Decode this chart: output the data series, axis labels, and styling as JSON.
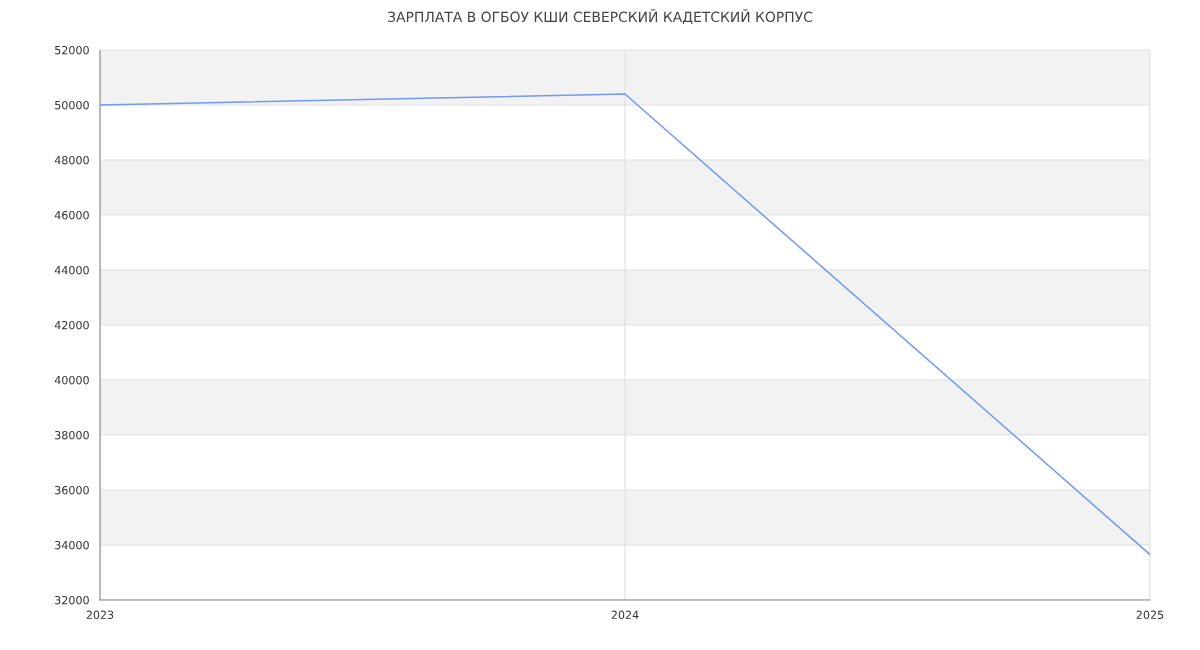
{
  "chart_data": {
    "type": "line",
    "title": "ЗАРПЛАТА В ОГБОУ КШИ СЕВЕРСКИЙ КАДЕТСКИЙ КОРПУС",
    "x": [
      2023,
      2024,
      2025
    ],
    "series": [
      {
        "color": "#6f9bf5",
        "values": [
          50000,
          50400,
          33650
        ]
      }
    ],
    "xlim": [
      2023,
      2025
    ],
    "xticks": [
      2023,
      2024,
      2025
    ],
    "ylim": [
      32000,
      52000
    ],
    "yticks": [
      32000,
      34000,
      36000,
      38000,
      40000,
      42000,
      44000,
      46000,
      48000,
      50000,
      52000
    ],
    "bands": [
      {
        "axis": "y",
        "from": 34000,
        "to": 36000,
        "color": "#f2f2f2"
      },
      {
        "axis": "y",
        "from": 38000,
        "to": 40000,
        "color": "#f2f2f2"
      },
      {
        "axis": "y",
        "from": 42000,
        "to": 44000,
        "color": "#f2f2f2"
      },
      {
        "axis": "y",
        "from": 46000,
        "to": 48000,
        "color": "#f2f2f2"
      },
      {
        "axis": "y",
        "from": 50000,
        "to": 52000,
        "color": "#f2f2f2"
      }
    ],
    "grid": true,
    "marker": "none",
    "line_style": "solid"
  }
}
